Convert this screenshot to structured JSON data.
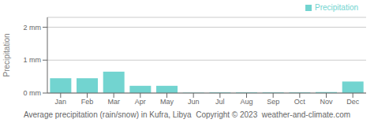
{
  "chart_data": {
    "type": "bar",
    "title": "Average precipitation (rain/snow) in Kufra, Libya  Copyright © 2023  weather-and-climate.com",
    "ylabel": "Precipitation",
    "categories": [
      "Jan",
      "Feb",
      "Mar",
      "Apr",
      "May",
      "Jun",
      "Jul",
      "Aug",
      "Sep",
      "Oct",
      "Nov",
      "Dec"
    ],
    "series": [
      {
        "name": "Precipitation",
        "color": "#72d4d0",
        "values": [
          0.45,
          0.45,
          0.65,
          0.22,
          0.22,
          0.01,
          0.02,
          0.02,
          0.02,
          0.02,
          0.03,
          0.35
        ]
      }
    ],
    "ylim": [
      0,
      2.3
    ],
    "yticks": [
      {
        "value": 0,
        "label": "0 mm"
      },
      {
        "value": 1,
        "label": "1 mm"
      },
      {
        "value": 2,
        "label": "2 mm"
      }
    ],
    "grid": true,
    "legend": "upper right"
  }
}
